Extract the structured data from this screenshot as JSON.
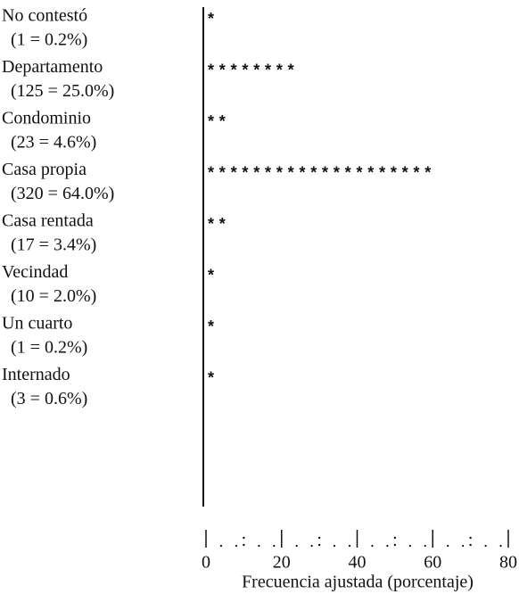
{
  "chart_data": {
    "type": "bar",
    "orientation": "horizontal",
    "categories": [
      "No contestó",
      "Departamento",
      "Condominio",
      "Casa propia",
      "Casa rentada",
      "Vecindad",
      "Un cuarto",
      "Internado"
    ],
    "values": [
      0.2,
      25.0,
      4.6,
      64.0,
      3.4,
      2.0,
      0.2,
      0.6
    ],
    "value_labels": [
      "(1 = 0.2%)",
      "(125 = 25.0%)",
      "(23 = 4.6%)",
      "(320 = 64.0%)",
      "(17 = 3.4%)",
      "(10 = 2.0%)",
      "(1 = 0.2%)",
      "(3 = 0.6%)"
    ],
    "xlim": [
      0,
      80
    ],
    "xticks": [
      0,
      20,
      40,
      60,
      80
    ],
    "xlabel": "Frecuencia ajustada (porcentaje)",
    "color": "#111111"
  }
}
